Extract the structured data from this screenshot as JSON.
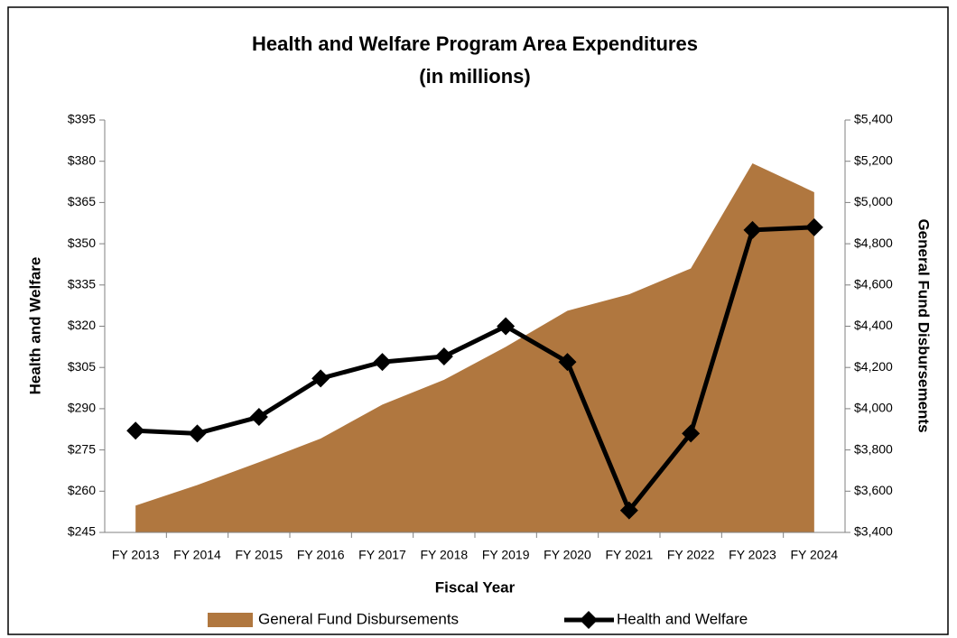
{
  "chart_data": {
    "type": "line",
    "title": "Health and Welfare Program Area Expenditures",
    "subtitle": "(in millions)",
    "x_label": "Fiscal Year",
    "y_label": "Health and Welfare",
    "y2_label": "General Fund Disbursements",
    "categories": [
      "FY 2013",
      "FY 2014",
      "FY 2015",
      "FY 2016",
      "FY 2017",
      "FY 2018",
      "FY 2019",
      "FY 2020",
      "FY 2021",
      "FY 2022",
      "FY 2023",
      "FY 2024"
    ],
    "series": [
      {
        "name": "General Fund Disbursements",
        "type": "area",
        "axis": "y2",
        "color": "#b0773f",
        "values": [
          3530,
          3630,
          3740,
          3855,
          4020,
          4140,
          4300,
          4475,
          4555,
          4680,
          5190,
          5050
        ]
      },
      {
        "name": "Health and Welfare",
        "type": "line",
        "color": "#000000",
        "values": [
          282,
          281,
          287,
          301,
          307,
          309,
          320,
          307,
          253,
          281,
          355,
          356
        ]
      }
    ],
    "ylim": [
      245,
      395
    ],
    "yticks": [
      {
        "value": 245,
        "label": "$245"
      },
      {
        "value": 260,
        "label": "$260"
      },
      {
        "value": 275,
        "label": "$275"
      },
      {
        "value": 290,
        "label": "$290"
      },
      {
        "value": 305,
        "label": "$305"
      },
      {
        "value": 320,
        "label": "$320"
      },
      {
        "value": 335,
        "label": "$335"
      },
      {
        "value": 350,
        "label": "$350"
      },
      {
        "value": 365,
        "label": "$365"
      },
      {
        "value": 380,
        "label": "$380"
      },
      {
        "value": 395,
        "label": "$395"
      }
    ],
    "y2lim": [
      3400,
      5400
    ],
    "y2ticks": [
      {
        "value": 3400,
        "label": "$3,400"
      },
      {
        "value": 3600,
        "label": "$3,600"
      },
      {
        "value": 3800,
        "label": "$3,800"
      },
      {
        "value": 4000,
        "label": "$4,000"
      },
      {
        "value": 4200,
        "label": "$4,200"
      },
      {
        "value": 4400,
        "label": "$4,400"
      },
      {
        "value": 4600,
        "label": "$4,600"
      },
      {
        "value": 4800,
        "label": "$4,800"
      },
      {
        "value": 5000,
        "label": "$5,000"
      },
      {
        "value": 5200,
        "label": "$5,200"
      },
      {
        "value": 5400,
        "label": "$5,400"
      }
    ],
    "grid": false,
    "legend": "bottom"
  }
}
